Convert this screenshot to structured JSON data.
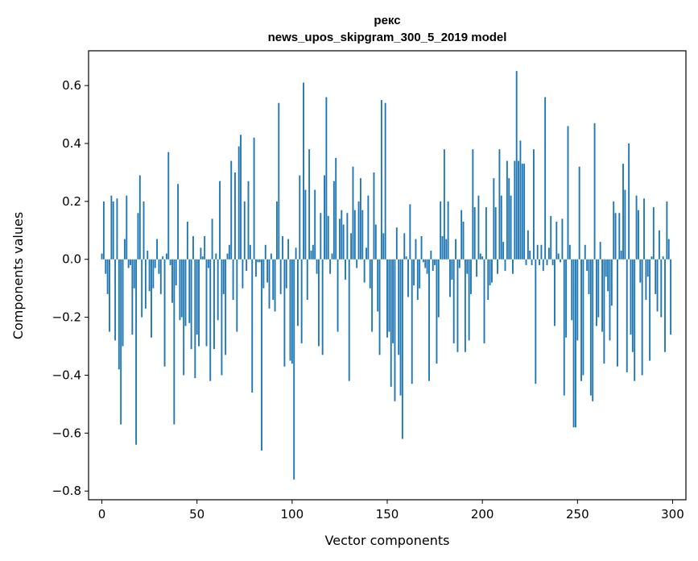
{
  "chart_data": {
    "type": "bar",
    "title": "рекс",
    "subtitle": "news_upos_skipgram_300_5_2019 model",
    "xlabel": "Vector components",
    "ylabel": "Components values",
    "xlim": [
      -7,
      307
    ],
    "ylim": [
      -0.83,
      0.72
    ],
    "xticks": [
      0,
      50,
      100,
      150,
      200,
      250,
      300
    ],
    "xtick_labels": [
      "0",
      "50",
      "100",
      "150",
      "200",
      "250",
      "300"
    ],
    "yticks": [
      -0.8,
      -0.6,
      -0.4,
      -0.2,
      0.0,
      0.2,
      0.4,
      0.6
    ],
    "ytick_labels": [
      "−0.8",
      "−0.6",
      "−0.4",
      "−0.2",
      "0.0",
      "0.2",
      "0.4",
      "0.6"
    ],
    "grid": false,
    "bar_color": "#1f77b4",
    "values": [
      0.02,
      0.2,
      -0.05,
      -0.12,
      -0.25,
      0.22,
      0.2,
      -0.28,
      0.21,
      -0.38,
      -0.57,
      -0.3,
      0.07,
      0.22,
      -0.03,
      -0.02,
      -0.26,
      -0.1,
      -0.64,
      0.16,
      0.29,
      -0.2,
      0.2,
      -0.17,
      0.03,
      -0.11,
      -0.27,
      -0.1,
      -0.03,
      0.07,
      -0.05,
      -0.12,
      0.01,
      -0.37,
      0.02,
      0.37,
      -0.02,
      -0.15,
      -0.57,
      -0.09,
      0.26,
      -0.21,
      -0.2,
      -0.4,
      -0.23,
      0.13,
      -0.22,
      -0.31,
      0.08,
      -0.41,
      -0.26,
      -0.3,
      0.04,
      0.01,
      0.08,
      -0.3,
      -0.03,
      -0.42,
      0.14,
      -0.31,
      0.02,
      -0.21,
      0.27,
      -0.4,
      -0.12,
      -0.33,
      0.02,
      0.05,
      0.34,
      -0.14,
      0.3,
      -0.25,
      0.39,
      0.43,
      -0.1,
      0.2,
      -0.04,
      0.27,
      0.05,
      -0.46,
      0.42,
      -0.06,
      -0.01,
      -0.01,
      -0.66,
      -0.1,
      0.05,
      -0.08,
      -0.17,
      0.02,
      -0.14,
      -0.18,
      0.2,
      0.54,
      -0.12,
      0.08,
      -0.37,
      -0.1,
      0.07,
      -0.35,
      -0.36,
      -0.76,
      0.04,
      -0.23,
      0.29,
      -0.29,
      0.61,
      0.24,
      -0.14,
      0.38,
      0.03,
      0.05,
      0.24,
      -0.05,
      -0.3,
      0.16,
      -0.33,
      0.29,
      0.56,
      0.15,
      -0.05,
      0.02,
      0.27,
      0.35,
      -0.25,
      0.14,
      0.17,
      0.12,
      -0.07,
      0.16,
      -0.42,
      0.09,
      0.32,
      0.17,
      -0.03,
      0.2,
      0.28,
      0.17,
      -0.08,
      0.04,
      0.22,
      -0.1,
      -0.25,
      0.3,
      0.12,
      -0.18,
      -0.33,
      0.55,
      0.09,
      0.54,
      -0.27,
      -0.25,
      -0.44,
      -0.29,
      -0.49,
      0.11,
      -0.33,
      -0.47,
      -0.62,
      0.09,
      0.01,
      -0.13,
      0.19,
      -0.43,
      -0.09,
      0.07,
      -0.14,
      -0.1,
      0.08,
      -0.01,
      -0.03,
      -0.05,
      -0.42,
      0.03,
      -0.04,
      -0.02,
      -0.36,
      -0.2,
      0.2,
      0.08,
      0.38,
      0.07,
      0.2,
      -0.13,
      -0.07,
      -0.29,
      0.07,
      -0.32,
      -0.03,
      0.17,
      0.13,
      -0.32,
      -0.05,
      -0.28,
      -0.12,
      0.38,
      0.18,
      -0.06,
      0.22,
      0.02,
      0.01,
      -0.29,
      0.18,
      -0.14,
      -0.09,
      -0.08,
      0.28,
      0.18,
      -0.05,
      0.38,
      0.22,
      0.06,
      -0.04,
      0.34,
      0.28,
      0.22,
      -0.05,
      0.34,
      0.65,
      0.34,
      0.41,
      0.33,
      0.33,
      -0.02,
      0.1,
      0.03,
      -0.02,
      0.38,
      -0.43,
      0.05,
      -0.02,
      0.05,
      -0.04,
      0.56,
      -0.02,
      0.04,
      0.15,
      -0.02,
      -0.23,
      0.13,
      0.02,
      -0.01,
      0.14,
      -0.47,
      -0.27,
      0.46,
      0.05,
      -0.21,
      -0.58,
      -0.58,
      -0.28,
      0.32,
      -0.42,
      -0.4,
      0.05,
      -0.04,
      -0.12,
      -0.47,
      -0.49,
      0.47,
      -0.23,
      -0.2,
      0.06,
      -0.25,
      -0.36,
      -0.06,
      -0.11,
      -0.28,
      -0.16,
      0.2,
      0.16,
      -0.37,
      0.16,
      0.03,
      0.33,
      0.24,
      -0.39,
      0.4,
      -0.26,
      -0.32,
      -0.42,
      0.22,
      0.17,
      -0.08,
      -0.4,
      0.21,
      -0.14,
      -0.06,
      -0.35,
      0.01,
      0.18,
      -0.12,
      -0.18,
      0.1,
      -0.2,
      0.01,
      -0.32,
      0.2,
      0.07,
      -0.26
    ]
  }
}
